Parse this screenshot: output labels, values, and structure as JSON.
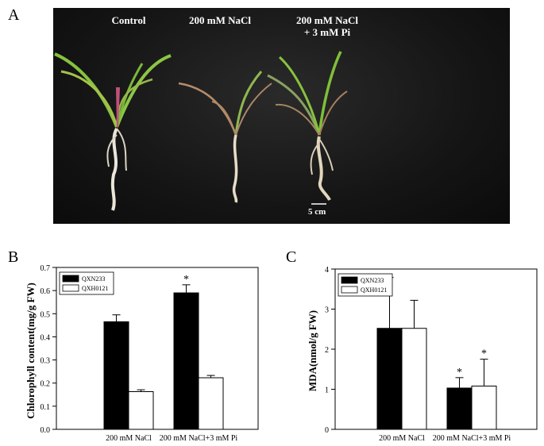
{
  "panel_labels": {
    "a": "A",
    "b": "B",
    "c": "C"
  },
  "photo": {
    "titles": [
      "Control",
      "200 mM NaCl",
      "200 mM NaCl",
      "+ 3 mM Pi"
    ],
    "scale_label": "5 cm",
    "plant_colors": {
      "leaf": "#7db83a",
      "leaf_dry": "#b08866",
      "root": "#e8e2d6"
    }
  },
  "chart_data": [
    {
      "type": "bar",
      "ylabel": "Chlorophyll content(mg/g FW)",
      "xlabel": "",
      "categories": [
        "200 mM NaCl",
        "200 mM NaCl+3 mM Pi"
      ],
      "series": [
        {
          "name": "QXN233",
          "color": "#000000",
          "values": [
            0.465,
            0.59
          ],
          "errors": [
            0.03,
            0.035
          ]
        },
        {
          "name": "QXH0121",
          "color": "#ffffff",
          "values": [
            0.163,
            0.223
          ],
          "errors": [
            0.008,
            0.01
          ]
        }
      ],
      "annotations": [
        {
          "category": 1,
          "series": 0,
          "text": "*"
        }
      ],
      "ylim": [
        0,
        0.7
      ],
      "yticks": [
        "0.0",
        "0.1",
        "0.2",
        "0.3",
        "0.4",
        "0.5",
        "0.6",
        "0.7"
      ],
      "legend": "top-left",
      "grid": false
    },
    {
      "type": "bar",
      "ylabel": "MDA(nmol/g FW)",
      "xlabel": "",
      "categories": [
        "200 mM NaCl",
        "200 mM NaCl+3 mM Pi"
      ],
      "series": [
        {
          "name": "QXN233",
          "color": "#000000",
          "values": [
            2.52,
            1.03
          ],
          "errors": [
            1.27,
            0.26
          ]
        },
        {
          "name": "QXH0121",
          "color": "#ffffff",
          "values": [
            2.52,
            1.08
          ],
          "errors": [
            0.7,
            0.67
          ]
        }
      ],
      "annotations": [
        {
          "category": 1,
          "series": 0,
          "text": "*"
        },
        {
          "category": 1,
          "series": 1,
          "text": "*"
        }
      ],
      "ylim": [
        0,
        4
      ],
      "yticks": [
        "0",
        "1",
        "2",
        "3",
        "4"
      ],
      "legend": "top-left",
      "grid": false
    }
  ]
}
